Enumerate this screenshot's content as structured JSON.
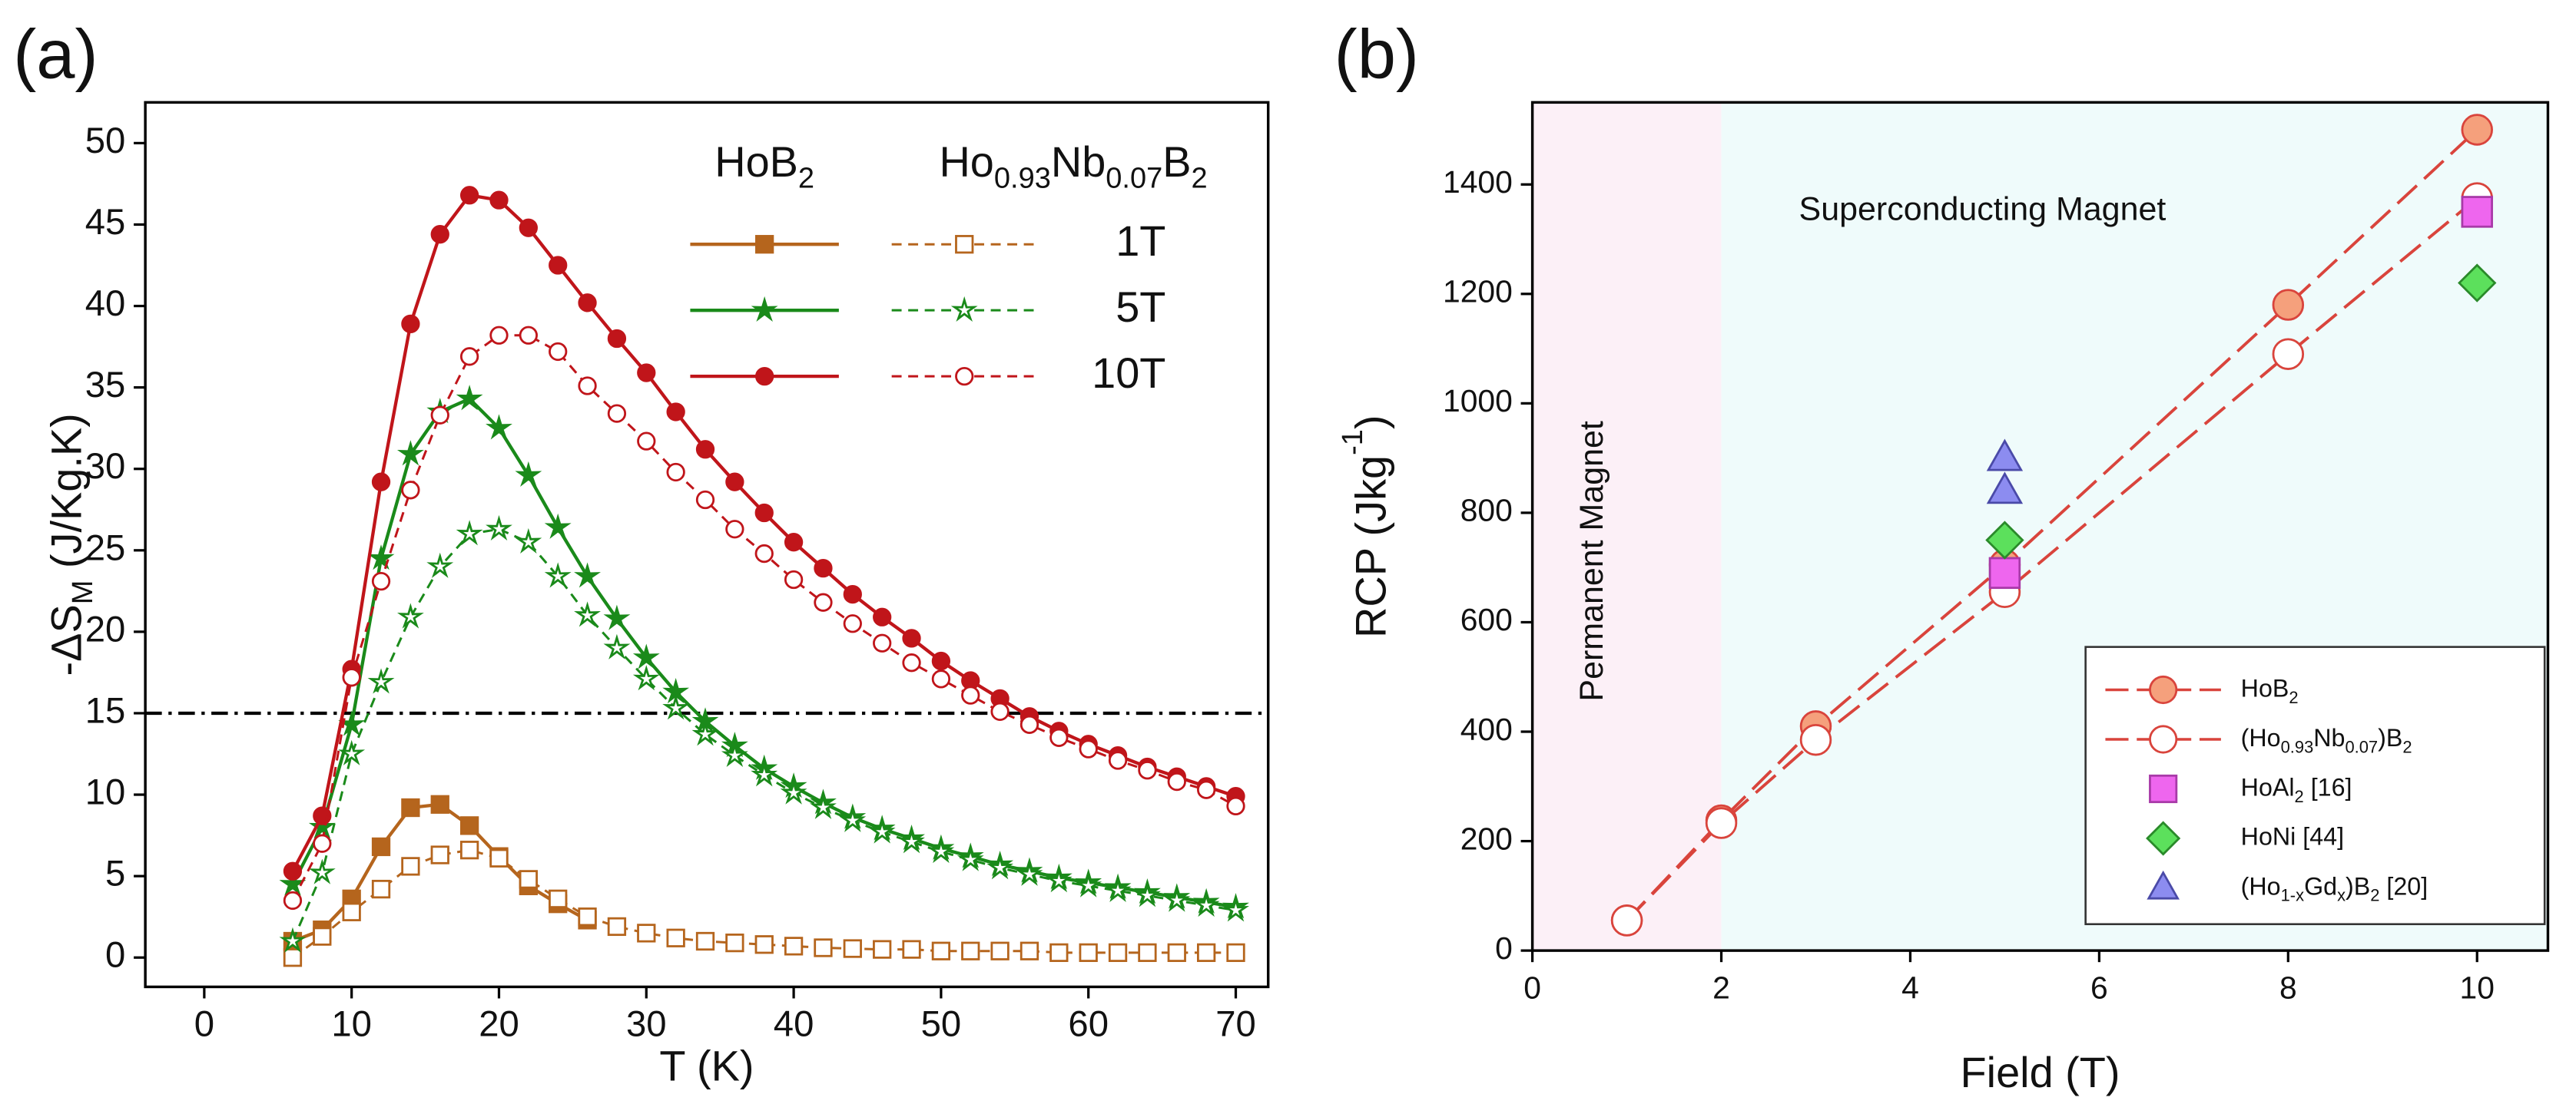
{
  "chart_data": [
    {
      "type": "line",
      "panel_label": "(a)",
      "xlabel": "T (K)",
      "ylabel": [
        "-ΔS",
        {
          "sub": "M"
        },
        " (J/Kg.K)"
      ],
      "xlim": [
        -4,
        72.2
      ],
      "ylim": [
        -1.8,
        52.5
      ],
      "xticks": [
        0,
        10,
        20,
        30,
        40,
        50,
        60,
        70
      ],
      "yticks": [
        0,
        5,
        10,
        15,
        20,
        25,
        30,
        35,
        40,
        45,
        50
      ],
      "x": [
        6,
        8,
        10,
        12,
        14,
        16,
        18,
        20,
        22,
        24,
        26,
        28,
        30,
        32,
        34,
        36,
        38,
        40,
        42,
        44,
        46,
        48,
        50,
        52,
        54,
        56,
        58,
        60,
        62,
        64,
        66,
        68,
        70
      ],
      "hline": 15,
      "fields": [
        "1T",
        "5T",
        "10T"
      ],
      "markers": [
        "square",
        "star",
        "circle"
      ],
      "colors": [
        "#b5651d",
        "#1a8a1a",
        "#c0151a"
      ],
      "groups": [
        {
          "name": [
            "HoB",
            {
              "sub": "2"
            }
          ],
          "fill": "filled",
          "line_style": "solid",
          "series": [
            [
              1.0,
              1.7,
              3.6,
              6.8,
              9.2,
              9.4,
              8.1,
              6.2,
              4.4,
              3.3,
              2.3,
              null,
              null,
              null,
              null,
              null,
              null,
              null,
              null,
              null,
              null,
              null,
              null,
              null,
              null,
              null,
              null,
              null,
              null,
              null,
              null,
              null,
              null
            ],
            [
              4.5,
              8.0,
              14.3,
              24.5,
              30.9,
              33.5,
              34.3,
              32.5,
              29.6,
              26.4,
              23.4,
              20.8,
              18.4,
              16.3,
              14.5,
              13.0,
              11.6,
              10.5,
              9.5,
              8.6,
              7.9,
              7.3,
              6.7,
              6.2,
              5.7,
              5.3,
              4.9,
              4.6,
              4.3,
              4.0,
              3.7,
              3.4,
              3.1
            ],
            [
              5.3,
              8.7,
              17.7,
              29.2,
              38.9,
              44.4,
              46.8,
              46.5,
              44.8,
              42.5,
              40.2,
              38.0,
              35.9,
              33.5,
              31.2,
              29.2,
              27.3,
              25.5,
              23.9,
              22.3,
              20.9,
              19.6,
              18.2,
              17.0,
              15.9,
              14.8,
              13.9,
              13.1,
              12.4,
              11.7,
              11.1,
              10.5,
              9.9
            ]
          ]
        },
        {
          "name": [
            "Ho",
            {
              "sub": "0.93"
            },
            "Nb",
            {
              "sub": "0.07"
            },
            "B",
            {
              "sub": "2"
            }
          ],
          "fill": "open",
          "line_style": "dashed",
          "series": [
            [
              0.0,
              1.3,
              2.8,
              4.2,
              5.6,
              6.3,
              6.6,
              6.1,
              4.8,
              3.6,
              2.5,
              1.9,
              1.5,
              1.2,
              1.0,
              0.9,
              0.8,
              0.7,
              0.6,
              0.55,
              0.5,
              0.5,
              0.4,
              0.4,
              0.4,
              0.4,
              0.3,
              0.3,
              0.3,
              0.3,
              0.3,
              0.3,
              0.3
            ],
            [
              1.0,
              5.2,
              12.5,
              16.9,
              20.9,
              24.0,
              26.0,
              26.3,
              25.5,
              23.4,
              21.0,
              19.0,
              17.1,
              15.3,
              13.7,
              12.4,
              11.2,
              10.1,
              9.2,
              8.4,
              7.7,
              7.1,
              6.5,
              6.0,
              5.5,
              5.1,
              4.7,
              4.4,
              4.1,
              3.8,
              3.5,
              3.2,
              2.9
            ],
            [
              3.5,
              7.0,
              17.2,
              23.1,
              28.7,
              33.3,
              36.9,
              38.2,
              38.2,
              37.2,
              35.1,
              33.4,
              31.7,
              29.8,
              28.1,
              26.3,
              24.8,
              23.2,
              21.8,
              20.5,
              19.3,
              18.1,
              17.1,
              16.1,
              15.1,
              14.3,
              13.5,
              12.8,
              12.1,
              11.5,
              10.8,
              10.3,
              9.3
            ]
          ]
        }
      ]
    },
    {
      "type": "scatter",
      "panel_label": "(b)",
      "xlabel": "Field (T)",
      "ylabel": [
        "RCP (Jkg",
        {
          "sup": "-1"
        },
        ")"
      ],
      "xlim": [
        0,
        10.75
      ],
      "ylim": [
        0,
        1550
      ],
      "xticks": [
        0,
        2,
        4,
        6,
        8,
        10
      ],
      "yticks": [
        0,
        200,
        400,
        600,
        800,
        1000,
        1200,
        1400
      ],
      "regions": [
        {
          "from": 0,
          "to": 2,
          "color": "#fcf0f7",
          "label": "Permanent Magnet"
        },
        {
          "from": 2,
          "to": 10.75,
          "color": "#effbfb",
          "label": "Superconducting Magnet"
        }
      ],
      "series": [
        {
          "name": [
            "HoB",
            {
              "sub": "2"
            }
          ],
          "x": [
            1,
            2,
            3,
            5,
            8,
            10
          ],
          "values": [
            55,
            238,
            410,
            705,
            1180,
            1500
          ],
          "marker": "circle",
          "color": "#f5a07c",
          "edge": "#d9443c",
          "line_style": "dashed"
        },
        {
          "name": [
            "(Ho",
            {
              "sub": "0.93"
            },
            "Nb",
            {
              "sub": "0.07"
            },
            ")B",
            {
              "sub": "2"
            }
          ],
          "x": [
            1,
            2,
            3,
            5,
            8,
            10
          ],
          "values": [
            55,
            233,
            385,
            655,
            1090,
            1375
          ],
          "marker": "circle",
          "color": "#ffffff",
          "edge": "#d9443c",
          "line_style": "dashed"
        },
        {
          "name": [
            "HoAl",
            {
              "sub": "2"
            },
            " [16]"
          ],
          "x": [
            5,
            10
          ],
          "values": [
            690,
            1350
          ],
          "marker": "square",
          "color": "#ee66ee",
          "edge": "#a83aa8"
        },
        {
          "name": "HoNi [44]",
          "x": [
            5,
            10
          ],
          "values": [
            750,
            1220
          ],
          "marker": "diamond",
          "color": "#5ce05c",
          "edge": "#2a8a2a"
        },
        {
          "name": [
            "(Ho",
            {
              "sub": "1-x"
            },
            "Gd",
            {
              "sub": "x"
            },
            ")B",
            {
              "sub": "2"
            },
            " [20]"
          ],
          "x": [
            5,
            5
          ],
          "values": [
            900,
            840
          ],
          "marker": "triangle",
          "color": "#8c8cf0",
          "edge": "#4a4aa8"
        }
      ]
    }
  ]
}
